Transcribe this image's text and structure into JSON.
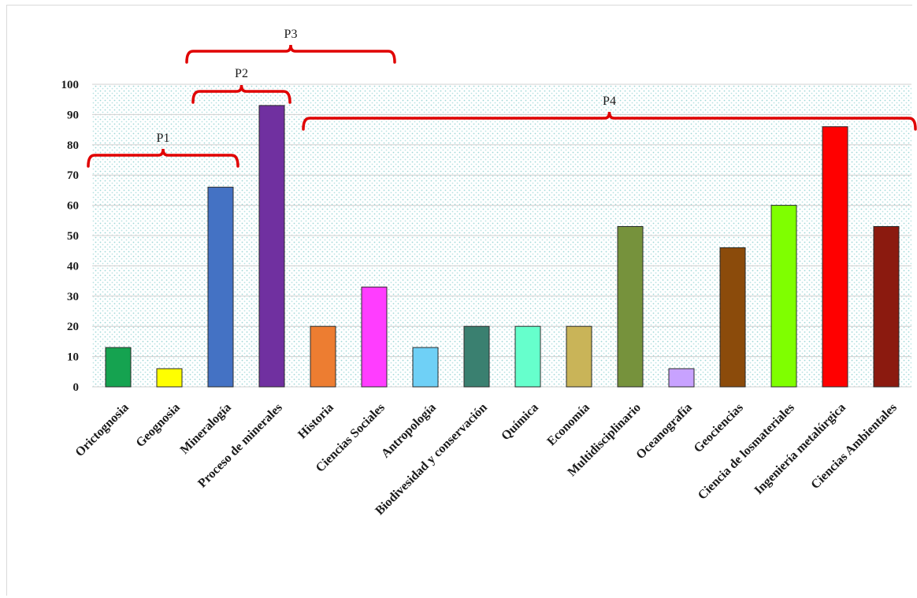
{
  "chart_data": {
    "type": "bar",
    "title": "",
    "xlabel": "",
    "ylabel": "",
    "ylim": [
      0,
      100
    ],
    "yticks": [
      0,
      10,
      20,
      30,
      40,
      50,
      60,
      70,
      80,
      90,
      100
    ],
    "grid": true,
    "legend": "none",
    "categories": [
      "Orictognosia",
      "Geognosia",
      "Mineralogía",
      "Proceso de minerales",
      "Historia",
      "Ciencias Sociales",
      "Antropología",
      "Biodivesidad y conservación",
      "Química",
      "Economía",
      "Multidisciplinario",
      "Oceanografía",
      "Geociencias",
      "Ciencia de losmateriales",
      "Ingeniería metalúrgica",
      "Ciencias Ambientales"
    ],
    "values": [
      13,
      6,
      66,
      93,
      20,
      33,
      13,
      20,
      20,
      20,
      53,
      6,
      46,
      60,
      86,
      53
    ],
    "colors": [
      "#15a350",
      "#ffff00",
      "#4472c4",
      "#7030a0",
      "#ed7d31",
      "#ff3dff",
      "#6fd0f6",
      "#3a8070",
      "#66ffcc",
      "#c9b458",
      "#76923c",
      "#c8a2ff",
      "#8b4b0b",
      "#7fff00",
      "#ff0000",
      "#8b1a0f"
    ],
    "annotations": [
      {
        "label": "P1",
        "from_category": 0,
        "to_category": 2
      },
      {
        "label": "P2",
        "from_category": 2,
        "to_category": 3
      },
      {
        "label": "P3",
        "from_category": 2,
        "to_category": 5
      },
      {
        "label": "P4",
        "from_category": 4,
        "to_category": 15
      }
    ],
    "annotation_color": "#e00000"
  }
}
